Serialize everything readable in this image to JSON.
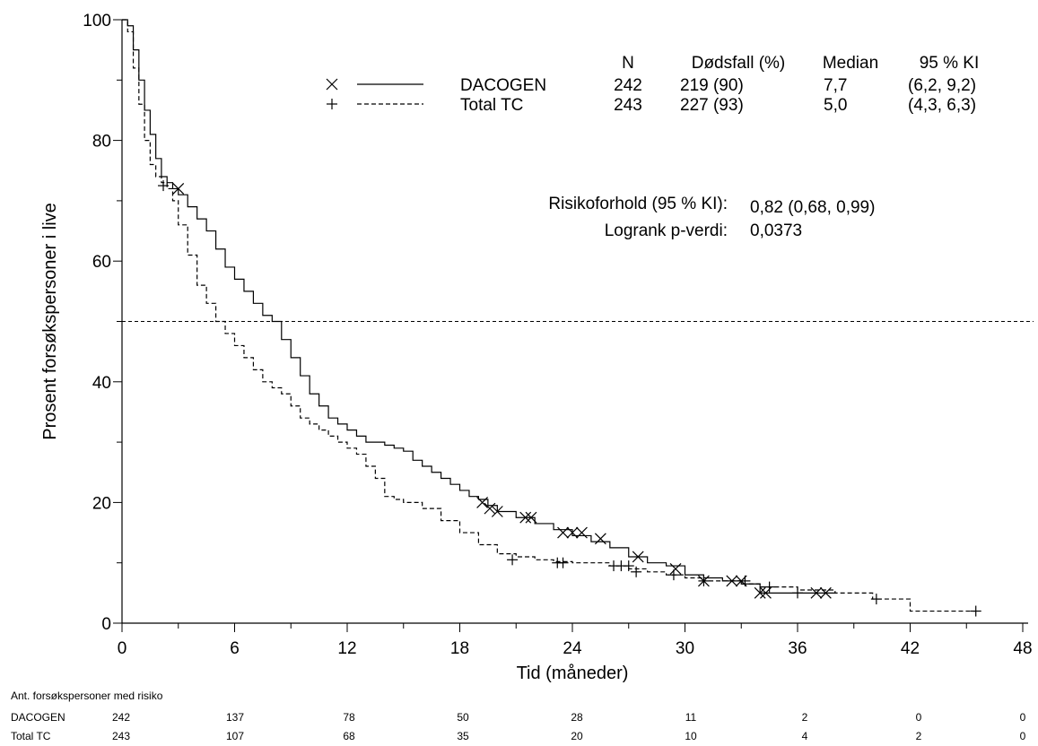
{
  "chart_data": {
    "type": "line",
    "subtype": "kaplan-meier",
    "xlabel": "Tid (måneder)",
    "ylabel": "Prosent forsøkspersoner i live",
    "xlim": [
      0,
      48
    ],
    "ylim": [
      0,
      100
    ],
    "xticks": [
      "0",
      "6",
      "12",
      "18",
      "24",
      "30",
      "36",
      "42",
      "48"
    ],
    "yticks": [
      "0",
      "20",
      "40",
      "60",
      "80",
      "100"
    ],
    "reference_line_y": 50,
    "grid": false,
    "legend": {
      "placement": "top-right",
      "headers": [
        "N",
        "Dødsfall (%)",
        "Median",
        "95 % KI"
      ],
      "rows": [
        {
          "marker": "×",
          "line": "solid",
          "name": "DACOGEN",
          "n": "242",
          "deaths": "219 (90)",
          "median": "7,7",
          "ci": "(6,2, 9,2)"
        },
        {
          "marker": "+",
          "line": "dashed",
          "name": "Total TC",
          "n": "243",
          "deaths": "227 (93)",
          "median": "5,0",
          "ci": "(4,3, 6,3)"
        }
      ]
    },
    "stats": [
      {
        "label": "Risikoforhold (95 % KI):",
        "value": "0,82 (0,68, 0,99)"
      },
      {
        "label": "Logrank p-verdi:",
        "value": "0,0373"
      }
    ],
    "series": [
      {
        "name": "DACOGEN",
        "style": "solid",
        "x": [
          0,
          0.3,
          0.6,
          0.9,
          1.2,
          1.5,
          1.8,
          2.1,
          2.4,
          2.7,
          3.0,
          3.5,
          4.0,
          4.5,
          5.0,
          5.5,
          6.0,
          6.5,
          7.0,
          7.5,
          8.0,
          8.5,
          9.0,
          9.5,
          10.0,
          10.5,
          11.0,
          11.5,
          12.0,
          12.5,
          13.0,
          13.5,
          14.0,
          14.5,
          15.0,
          15.5,
          16.0,
          16.5,
          17.0,
          17.5,
          18.0,
          18.5,
          19.0,
          19.5,
          20.0,
          21.0,
          22.0,
          23.0,
          24.0,
          25.0,
          26.0,
          27.0,
          28.0,
          29.0,
          30.0,
          31.0,
          32.0,
          33.0,
          34.0,
          35.0,
          36.0,
          37.0,
          38.0
        ],
        "y": [
          100,
          99,
          95,
          90,
          85,
          81,
          77,
          74,
          73,
          72,
          71,
          69,
          67,
          65,
          62,
          59,
          57,
          55,
          53,
          51,
          50,
          47,
          44,
          41,
          38,
          36,
          34,
          33,
          32,
          31,
          30,
          30,
          29.5,
          29,
          28.5,
          27,
          26,
          25,
          24,
          23,
          22,
          21,
          20.5,
          19.5,
          18.5,
          17.5,
          16.5,
          15.5,
          14.5,
          13.5,
          12.5,
          11,
          10,
          9.5,
          8,
          7.5,
          7,
          6.5,
          5,
          5,
          5,
          5,
          5
        ],
        "censored": [
          {
            "x": 3.0,
            "y": 72
          },
          {
            "x": 19.2,
            "y": 20
          },
          {
            "x": 19.6,
            "y": 19
          },
          {
            "x": 20.0,
            "y": 18.5
          },
          {
            "x": 21.5,
            "y": 17.5
          },
          {
            "x": 21.8,
            "y": 17.5
          },
          {
            "x": 23.5,
            "y": 15
          },
          {
            "x": 24.0,
            "y": 15
          },
          {
            "x": 24.5,
            "y": 15
          },
          {
            "x": 25.5,
            "y": 14
          },
          {
            "x": 27.5,
            "y": 11
          },
          {
            "x": 29.5,
            "y": 9
          },
          {
            "x": 31.0,
            "y": 7
          },
          {
            "x": 32.5,
            "y": 7
          },
          {
            "x": 33.0,
            "y": 7
          },
          {
            "x": 34.0,
            "y": 5
          },
          {
            "x": 34.3,
            "y": 5
          },
          {
            "x": 37.0,
            "y": 5
          },
          {
            "x": 37.5,
            "y": 5
          }
        ]
      },
      {
        "name": "Total TC",
        "style": "dashed",
        "x": [
          0,
          0.3,
          0.6,
          0.9,
          1.2,
          1.5,
          1.8,
          2.1,
          2.4,
          2.7,
          3.0,
          3.5,
          4.0,
          4.5,
          5.0,
          5.5,
          6.0,
          6.5,
          7.0,
          7.5,
          8.0,
          8.5,
          9.0,
          9.5,
          10.0,
          10.5,
          11.0,
          11.5,
          12.0,
          12.5,
          13.0,
          13.5,
          14.0,
          14.5,
          15.0,
          16.0,
          17.0,
          18.0,
          19.0,
          20.0,
          21.0,
          22.0,
          23.0,
          24.0,
          25.0,
          26.0,
          27.0,
          28.0,
          29.0,
          30.0,
          31.0,
          32.0,
          33.0,
          34.0,
          35.0,
          36.0,
          38.0,
          40.0,
          42.0,
          43.0,
          45.5
        ],
        "y": [
          100,
          98,
          92,
          86,
          80,
          76,
          74,
          73,
          72,
          70,
          66,
          61,
          56,
          53,
          50,
          48,
          46,
          44,
          42,
          40,
          39,
          38,
          36,
          34,
          33,
          32,
          31,
          30,
          29,
          28,
          26,
          24,
          21,
          20.5,
          20,
          19,
          17,
          15,
          13,
          11.5,
          11,
          10.5,
          10.2,
          10,
          10,
          9.5,
          9,
          8.5,
          8,
          7.5,
          7,
          7,
          6.5,
          6,
          6,
          5.5,
          5,
          4,
          2,
          2,
          2
        ],
        "censored": [
          {
            "x": 2.2,
            "y": 72.5
          },
          {
            "x": 20.8,
            "y": 10.5
          },
          {
            "x": 23.2,
            "y": 10
          },
          {
            "x": 23.5,
            "y": 10
          },
          {
            "x": 26.2,
            "y": 9.5
          },
          {
            "x": 26.6,
            "y": 9.5
          },
          {
            "x": 27.0,
            "y": 9.5
          },
          {
            "x": 27.4,
            "y": 8.5
          },
          {
            "x": 29.4,
            "y": 8
          },
          {
            "x": 31.0,
            "y": 7
          },
          {
            "x": 33.2,
            "y": 7
          },
          {
            "x": 34.5,
            "y": 6
          },
          {
            "x": 36.0,
            "y": 5
          },
          {
            "x": 40.2,
            "y": 4
          },
          {
            "x": 45.5,
            "y": 2
          }
        ]
      }
    ],
    "risk_table": {
      "title": "Ant. forsøkspersoner med risiko",
      "rows": [
        {
          "name": "DACOGEN",
          "values": [
            "242",
            "137",
            "78",
            "50",
            "28",
            "11",
            "2",
            "0",
            "0"
          ]
        },
        {
          "name": "Total TC",
          "values": [
            "243",
            "107",
            "68",
            "35",
            "20",
            "10",
            "4",
            "2",
            "0"
          ]
        }
      ]
    }
  }
}
